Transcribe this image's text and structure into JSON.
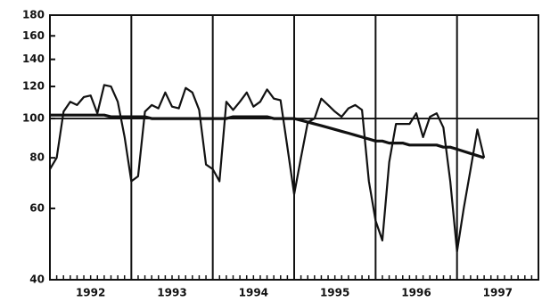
{
  "chart_data": {
    "type": "line",
    "log_y": true,
    "x": [
      1992,
      1992.083,
      1992.167,
      1992.25,
      1992.333,
      1992.417,
      1992.5,
      1992.583,
      1992.667,
      1992.75,
      1992.833,
      1992.917,
      1993,
      1993.083,
      1993.167,
      1993.25,
      1993.333,
      1993.417,
      1993.5,
      1993.583,
      1993.667,
      1993.75,
      1993.833,
      1993.917,
      1994,
      1994.083,
      1994.167,
      1994.25,
      1994.333,
      1994.417,
      1994.5,
      1994.583,
      1994.667,
      1994.75,
      1994.833,
      1994.917,
      1995,
      1995.083,
      1995.167,
      1995.25,
      1995.333,
      1995.417,
      1995.5,
      1995.583,
      1995.667,
      1995.75,
      1995.833,
      1995.917,
      1996,
      1996.083,
      1996.167,
      1996.25,
      1996.333,
      1996.417,
      1996.5,
      1996.583,
      1996.667,
      1996.75,
      1996.833,
      1996.917,
      1997,
      1997.083,
      1997.167,
      1997.25,
      1997.333
    ],
    "series": [
      {
        "color": "#111111",
        "width": 2.2,
        "values": [
          75,
          80,
          104,
          110,
          108,
          113,
          114,
          103,
          121,
          120,
          110,
          90,
          70,
          72,
          104,
          108,
          106,
          116,
          107,
          106,
          119,
          116,
          105,
          77,
          75,
          70,
          110,
          105,
          110,
          116,
          107,
          110,
          118,
          112,
          111,
          85,
          65,
          80,
          98,
          100,
          112,
          108,
          104,
          101,
          106,
          108,
          105,
          70,
          56,
          50,
          78,
          97,
          97,
          97,
          103,
          90,
          101,
          103,
          95,
          70,
          47,
          60,
          75,
          94,
          80
        ]
      },
      {
        "color": "#111111",
        "width": 3.2,
        "values": [
          102,
          102,
          102,
          102,
          102,
          102,
          102,
          102,
          102,
          101,
          101,
          101,
          101,
          101,
          101,
          100,
          100,
          100,
          100,
          100,
          100,
          100,
          100,
          100,
          100,
          100,
          100,
          101,
          101,
          101,
          101,
          101,
          101,
          100,
          100,
          100,
          100,
          99,
          98,
          97,
          96,
          95,
          94,
          93,
          92,
          91,
          90,
          89,
          88,
          88,
          87,
          87,
          87,
          86,
          86,
          86,
          86,
          86,
          85,
          85,
          84,
          83,
          82,
          81,
          80
        ]
      }
    ],
    "xlim": [
      1992,
      1998
    ],
    "xticks": [
      {
        "value": 1992.5,
        "label": "1992"
      },
      {
        "value": 1993.5,
        "label": "1993"
      },
      {
        "value": 1994.5,
        "label": "1994"
      },
      {
        "value": 1995.5,
        "label": "1995"
      },
      {
        "value": 1996.5,
        "label": "1996"
      },
      {
        "value": 1997.5,
        "label": "1997"
      }
    ],
    "xgrid": [
      1993,
      1994,
      1995,
      1996,
      1997
    ],
    "ylim": [
      40,
      180
    ],
    "yticks": [
      40,
      60,
      80,
      100,
      120,
      140,
      160,
      180
    ],
    "hline": 100
  }
}
